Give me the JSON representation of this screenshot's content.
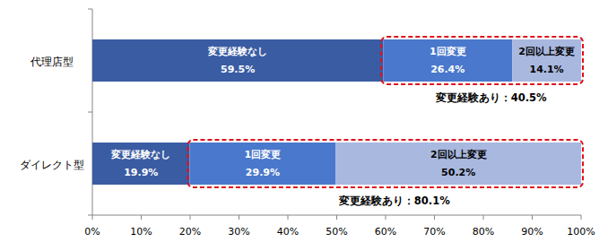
{
  "chart_data": {
    "type": "bar",
    "orientation": "horizontal",
    "stacked": true,
    "data_labels": true,
    "grid": false,
    "categories": [
      "代理店型",
      "ダイレクト型"
    ],
    "series": [
      {
        "name": "変更経験なし",
        "color": "#3a5ca3",
        "values": [
          59.5,
          19.9
        ],
        "value_labels": [
          "59.5%",
          "19.9%"
        ]
      },
      {
        "name": "1回変更",
        "color": "#4a78cc",
        "values": [
          26.4,
          29.9
        ],
        "value_labels": [
          "26.4%",
          "29.9%"
        ]
      },
      {
        "name": "2回以上変更",
        "color": "#a9b8df",
        "values": [
          14.1,
          50.2
        ],
        "value_labels": [
          "14.1%",
          "50.2%"
        ]
      }
    ],
    "annotations": [
      "変更経験あり：40.5%",
      "変更経験あり：80.1%"
    ],
    "xlim": [
      0,
      100
    ],
    "xticks": [
      {
        "value": 0,
        "label": "0%"
      },
      {
        "value": 10,
        "label": "10%"
      },
      {
        "value": 20,
        "label": "20%"
      },
      {
        "value": 30,
        "label": "30%"
      },
      {
        "value": 40,
        "label": "40%"
      },
      {
        "value": 50,
        "label": "50%"
      },
      {
        "value": 60,
        "label": "60%"
      },
      {
        "value": 70,
        "label": "70%"
      },
      {
        "value": 80,
        "label": "80%"
      },
      {
        "value": 90,
        "label": "90%"
      },
      {
        "value": 100,
        "label": "100%"
      }
    ]
  }
}
